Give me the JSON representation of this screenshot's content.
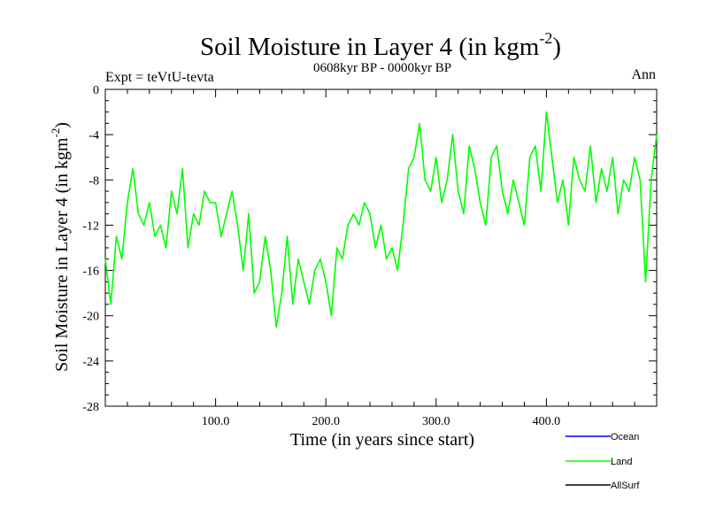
{
  "chart_data": {
    "type": "line",
    "title": "Soil Moisture in Layer 4 (in kgm",
    "title_sup": "-2",
    "title_close": ")",
    "subtitle": "0608kyr BP - 0000kyr BP",
    "expt_label": "Expt = teVtU-tevta",
    "season_label": "Ann",
    "xlabel": "Time (in years since start)",
    "ylabel": "Soil Moisture in Layer 4 (in kgm",
    "ylabel_sup": "-2",
    "ylabel_close": ")",
    "xlim": [
      0,
      500
    ],
    "ylim": [
      -28,
      0
    ],
    "x_ticks": [
      100,
      200,
      300,
      400
    ],
    "x_tick_labels": [
      "100.0",
      "200.0",
      "300.0",
      "400.0"
    ],
    "y_ticks": [
      0,
      -4,
      -8,
      -12,
      -16,
      -20,
      -24,
      -28
    ],
    "y_tick_labels": [
      "0",
      "-4",
      "-8",
      "-12",
      "-16",
      "-20",
      "-24",
      "-28"
    ],
    "grid": false,
    "legend_placement": "bottom-right",
    "series": [
      {
        "name": "Land",
        "color": "#00ff00",
        "x": [
          0,
          5,
          10,
          15,
          20,
          25,
          30,
          35,
          40,
          45,
          50,
          55,
          60,
          65,
          70,
          75,
          80,
          85,
          90,
          95,
          100,
          105,
          110,
          115,
          120,
          125,
          130,
          135,
          140,
          145,
          150,
          155,
          160,
          165,
          170,
          175,
          180,
          185,
          190,
          195,
          200,
          205,
          210,
          215,
          220,
          225,
          230,
          235,
          240,
          245,
          250,
          255,
          260,
          265,
          270,
          275,
          280,
          285,
          290,
          295,
          300,
          305,
          310,
          315,
          320,
          325,
          330,
          335,
          340,
          345,
          350,
          355,
          360,
          365,
          370,
          375,
          380,
          385,
          390,
          395,
          400,
          405,
          410,
          415,
          420,
          425,
          430,
          435,
          440,
          445,
          450,
          455,
          460,
          465,
          470,
          475,
          480,
          485,
          490,
          495,
          500
        ],
        "values": [
          -15,
          -19,
          -13,
          -15,
          -10,
          -7,
          -11,
          -12,
          -10,
          -13,
          -12,
          -14,
          -9,
          -11,
          -7,
          -14,
          -11,
          -12,
          -9,
          -10,
          -10,
          -13,
          -11,
          -9,
          -12,
          -16,
          -11,
          -18,
          -17,
          -13,
          -16,
          -21,
          -18,
          -13,
          -19,
          -15,
          -17,
          -19,
          -16,
          -15,
          -17,
          -20,
          -14,
          -15,
          -12,
          -11,
          -12,
          -10,
          -11,
          -14,
          -12,
          -15,
          -14,
          -16,
          -12,
          -7,
          -6,
          -3,
          -8,
          -9,
          -6,
          -10,
          -8,
          -4,
          -9,
          -11,
          -5,
          -7,
          -10,
          -12,
          -6,
          -5,
          -9,
          -11,
          -8,
          -10,
          -12,
          -6,
          -5,
          -9,
          -2,
          -6,
          -10,
          -8,
          -12,
          -6,
          -8,
          -9,
          -5,
          -10,
          -7,
          -9,
          -6,
          -11,
          -8,
          -9,
          -6,
          -8,
          -17,
          -8,
          -4
        ]
      },
      {
        "name": "Ocean",
        "color": "#0000ff"
      },
      {
        "name": "AllSurf",
        "color": "#000000"
      }
    ]
  }
}
